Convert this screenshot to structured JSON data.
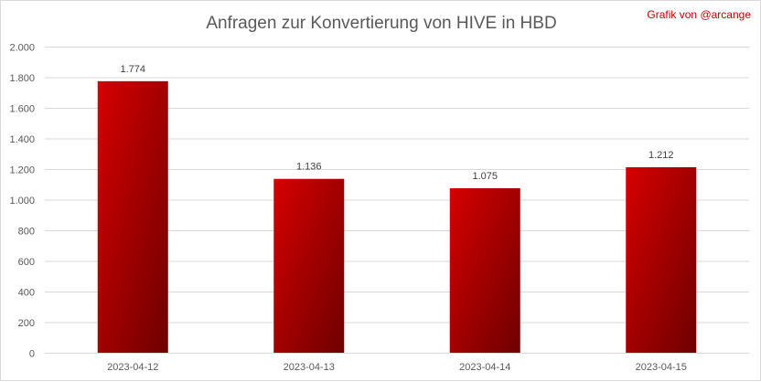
{
  "title": "Anfragen zur Konvertierung von HIVE in HBD",
  "credit": "Grafik von @arcange",
  "chart_data": {
    "type": "bar",
    "title": "Anfragen zur Konvertierung von HIVE in HBD",
    "xlabel": "",
    "ylabel": "",
    "categories": [
      "2023-04-12",
      "2023-04-13",
      "2023-04-14",
      "2023-04-15"
    ],
    "values": [
      1774,
      1136,
      1075,
      1212
    ],
    "value_labels": [
      "1.774",
      "1.136",
      "1.075",
      "1.212"
    ],
    "ylim": [
      0,
      2000
    ],
    "yticks": [
      0,
      200,
      400,
      600,
      800,
      1000,
      1200,
      1400,
      1600,
      1800,
      2000
    ],
    "ytick_labels": [
      "0",
      "200",
      "400",
      "600",
      "800",
      "1.000",
      "1.200",
      "1.400",
      "1.600",
      "1.800",
      "2.000"
    ],
    "grid": true,
    "legend": "none",
    "bar_color_light": "#d60000",
    "bar_color_dark": "#6e0000",
    "grid_color": "#d9d9d9"
  }
}
